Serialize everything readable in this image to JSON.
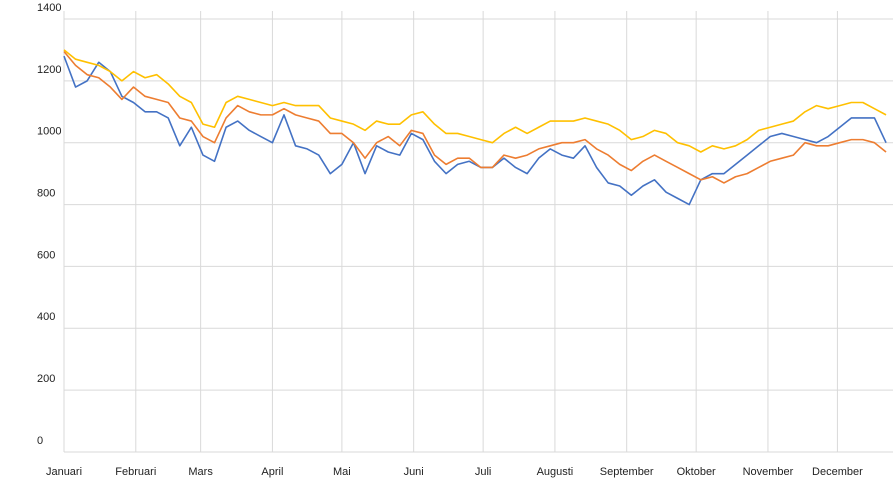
{
  "chart_data": {
    "type": "line",
    "x": [
      1,
      6,
      11,
      16,
      21,
      26,
      31,
      36,
      41,
      46,
      51,
      56,
      61,
      66,
      71,
      76,
      81,
      86,
      91,
      96,
      101,
      106,
      111,
      116,
      121,
      126,
      131,
      136,
      141,
      146,
      151,
      156,
      161,
      166,
      171,
      176,
      181,
      186,
      191,
      196,
      201,
      206,
      211,
      216,
      221,
      226,
      231,
      236,
      241,
      246,
      251,
      256,
      261,
      266,
      271,
      276,
      281,
      286,
      291,
      296,
      301,
      306,
      311,
      316,
      321,
      326,
      331,
      336,
      341,
      346,
      351,
      356
    ],
    "series": [
      {
        "color": "#4472c4",
        "values": [
          1280,
          1180,
          1200,
          1260,
          1230,
          1150,
          1130,
          1100,
          1100,
          1080,
          990,
          1050,
          960,
          940,
          1050,
          1070,
          1040,
          1020,
          1000,
          1090,
          990,
          980,
          960,
          900,
          930,
          1000,
          900,
          990,
          970,
          960,
          1030,
          1010,
          940,
          900,
          930,
          940,
          920,
          920,
          950,
          920,
          900,
          950,
          980,
          960,
          950,
          990,
          920,
          870,
          860,
          830,
          860,
          880,
          840,
          820,
          800,
          880,
          900,
          900,
          930,
          960,
          990,
          1020,
          1030,
          1020,
          1010,
          1000,
          1020,
          1050,
          1080,
          1080,
          1080,
          1000
        ]
      },
      {
        "color": "#ed7d31",
        "values": [
          1295,
          1250,
          1220,
          1210,
          1180,
          1140,
          1180,
          1150,
          1140,
          1130,
          1080,
          1070,
          1020,
          1000,
          1080,
          1120,
          1100,
          1090,
          1090,
          1110,
          1090,
          1080,
          1070,
          1030,
          1030,
          1000,
          950,
          1000,
          1020,
          990,
          1040,
          1030,
          960,
          930,
          950,
          950,
          920,
          920,
          960,
          950,
          960,
          980,
          990,
          1000,
          1000,
          1010,
          980,
          960,
          930,
          910,
          940,
          960,
          940,
          920,
          900,
          880,
          890,
          870,
          890,
          900,
          920,
          940,
          950,
          960,
          1000,
          990,
          990,
          1000,
          1010,
          1010,
          1000,
          970
        ]
      },
      {
        "color": "#ffc000",
        "values": [
          1300,
          1270,
          1260,
          1250,
          1230,
          1200,
          1230,
          1210,
          1220,
          1190,
          1150,
          1130,
          1060,
          1050,
          1130,
          1150,
          1140,
          1130,
          1120,
          1130,
          1120,
          1120,
          1120,
          1080,
          1070,
          1060,
          1040,
          1070,
          1060,
          1060,
          1090,
          1100,
          1060,
          1030,
          1030,
          1020,
          1010,
          1000,
          1030,
          1050,
          1030,
          1050,
          1070,
          1070,
          1070,
          1080,
          1070,
          1060,
          1040,
          1010,
          1020,
          1040,
          1030,
          1000,
          990,
          970,
          990,
          980,
          990,
          1010,
          1040,
          1050,
          1060,
          1070,
          1100,
          1120,
          1110,
          1120,
          1130,
          1130,
          1110,
          1090
        ]
      }
    ],
    "xlim": [
      1,
      359
    ],
    "xticks": [
      {
        "value": 1,
        "label": "Januari"
      },
      {
        "value": 32,
        "label": "Februari"
      },
      {
        "value": 60,
        "label": "Mars"
      },
      {
        "value": 91,
        "label": "April"
      },
      {
        "value": 121,
        "label": "Mai"
      },
      {
        "value": 152,
        "label": "Juni"
      },
      {
        "value": 182,
        "label": "Juli"
      },
      {
        "value": 213,
        "label": "Augusti"
      },
      {
        "value": 244,
        "label": "September"
      },
      {
        "value": 274,
        "label": "Oktober"
      },
      {
        "value": 305,
        "label": "November"
      },
      {
        "value": 335,
        "label": "December"
      }
    ],
    "ylim": [
      0,
      1400
    ],
    "yticks": [
      0,
      200,
      400,
      600,
      800,
      1000,
      1200,
      1400
    ],
    "grid": true
  }
}
